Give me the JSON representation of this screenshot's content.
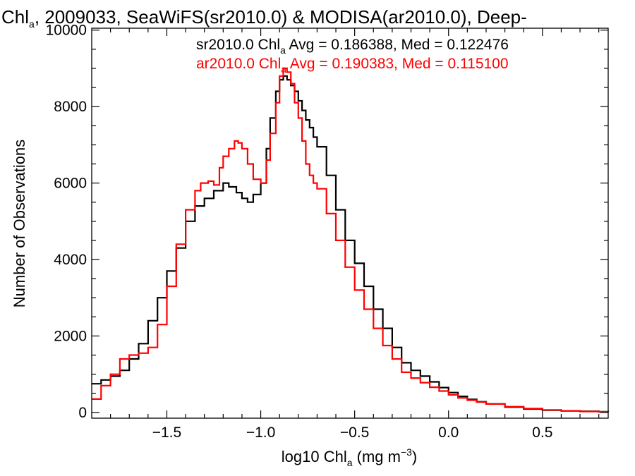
{
  "chart_data": {
    "type": "line",
    "title": {
      "pre": "Chl",
      "sub": "a",
      "post": ", 2009033, SeaWiFS(sr2010.0) & MODISA(ar2010.0), Deep-"
    },
    "xlabel": {
      "pre": "log10 Chl",
      "sub": "a",
      "post": " (mg m",
      "sup": "−3",
      "end": ")"
    },
    "ylabel": "Number of Observations",
    "xlim": [
      -1.9,
      0.85
    ],
    "ylim": [
      -150,
      10050
    ],
    "xticks": [
      {
        "v": -1.5,
        "label": "−1.5"
      },
      {
        "v": -1.0,
        "label": "−1.0"
      },
      {
        "v": -0.5,
        "label": "−0.5"
      },
      {
        "v": 0.0,
        "label": "0.0"
      },
      {
        "v": 0.5,
        "label": "0.5"
      }
    ],
    "yticks": [
      {
        "v": 0,
        "label": "0"
      },
      {
        "v": 2000,
        "label": "2000"
      },
      {
        "v": 4000,
        "label": "4000"
      },
      {
        "v": 6000,
        "label": "6000"
      },
      {
        "v": 8000,
        "label": "8000"
      },
      {
        "v": 10000,
        "label": "10000"
      }
    ],
    "xminor_step": 0.1,
    "yminor_step": 500,
    "step_type": "histogram",
    "series": [
      {
        "name": "sr2010.0",
        "color": "#000000",
        "legend": {
          "pre": "sr2010.0 Chl",
          "sub": "a",
          "post": " Avg = 0.186388, Med = 0.122476"
        },
        "x": [
          -1.9,
          -1.85,
          -1.8,
          -1.75,
          -1.7,
          -1.65,
          -1.6,
          -1.55,
          -1.5,
          -1.45,
          -1.4,
          -1.35,
          -1.3,
          -1.25,
          -1.2,
          -1.17,
          -1.13,
          -1.1,
          -1.07,
          -1.04,
          -1.0,
          -0.97,
          -0.95,
          -0.92,
          -0.9,
          -0.88,
          -0.86,
          -0.84,
          -0.82,
          -0.8,
          -0.78,
          -0.76,
          -0.74,
          -0.72,
          -0.7,
          -0.65,
          -0.6,
          -0.55,
          -0.5,
          -0.45,
          -0.4,
          -0.35,
          -0.3,
          -0.25,
          -0.2,
          -0.15,
          -0.1,
          -0.05,
          0.0,
          0.05,
          0.1,
          0.15,
          0.2,
          0.3,
          0.4,
          0.5,
          0.6,
          0.7,
          0.8,
          0.85
        ],
        "y": [
          750,
          850,
          950,
          1100,
          1400,
          1800,
          2400,
          3000,
          3700,
          4300,
          5000,
          5400,
          5600,
          5800,
          6000,
          5900,
          5750,
          5600,
          5500,
          5700,
          6000,
          6900,
          7700,
          8400,
          8700,
          8800,
          8700,
          8550,
          8400,
          8150,
          7900,
          7650,
          7450,
          7200,
          6950,
          6200,
          5300,
          4500,
          3900,
          3300,
          2700,
          2200,
          1700,
          1300,
          1100,
          950,
          800,
          650,
          520,
          420,
          340,
          280,
          220,
          140,
          90,
          60,
          40,
          30,
          20,
          15
        ]
      },
      {
        "name": "ar2010.0",
        "color": "#ff0000",
        "legend": {
          "pre": "ar2010.0 Chl",
          "sub": "a",
          "post": " Avg = 0.190383, Med = 0.115100"
        },
        "x": [
          -1.9,
          -1.85,
          -1.8,
          -1.75,
          -1.7,
          -1.65,
          -1.6,
          -1.55,
          -1.5,
          -1.45,
          -1.4,
          -1.35,
          -1.32,
          -1.28,
          -1.25,
          -1.22,
          -1.2,
          -1.17,
          -1.14,
          -1.12,
          -1.1,
          -1.07,
          -1.04,
          -1.0,
          -0.97,
          -0.95,
          -0.92,
          -0.9,
          -0.88,
          -0.86,
          -0.84,
          -0.82,
          -0.8,
          -0.78,
          -0.76,
          -0.74,
          -0.72,
          -0.7,
          -0.65,
          -0.6,
          -0.55,
          -0.5,
          -0.45,
          -0.4,
          -0.35,
          -0.3,
          -0.25,
          -0.2,
          -0.15,
          -0.1,
          -0.05,
          0.0,
          0.05,
          0.1,
          0.15,
          0.2,
          0.3,
          0.4,
          0.5,
          0.6,
          0.7,
          0.8,
          0.85
        ],
        "y": [
          350,
          700,
          1000,
          1400,
          1500,
          1550,
          1700,
          2300,
          3300,
          4400,
          5300,
          5800,
          6000,
          6050,
          5950,
          6400,
          6700,
          6900,
          7100,
          7050,
          6900,
          6500,
          6100,
          6000,
          6600,
          7300,
          8100,
          8800,
          9000,
          8900,
          8600,
          8100,
          7700,
          7100,
          6500,
          6200,
          6000,
          5850,
          5200,
          4500,
          3800,
          3200,
          2700,
          2200,
          1750,
          1400,
          1050,
          900,
          780,
          660,
          560,
          460,
          380,
          320,
          270,
          220,
          150,
          100,
          65,
          40,
          25,
          15,
          10
        ]
      }
    ]
  }
}
